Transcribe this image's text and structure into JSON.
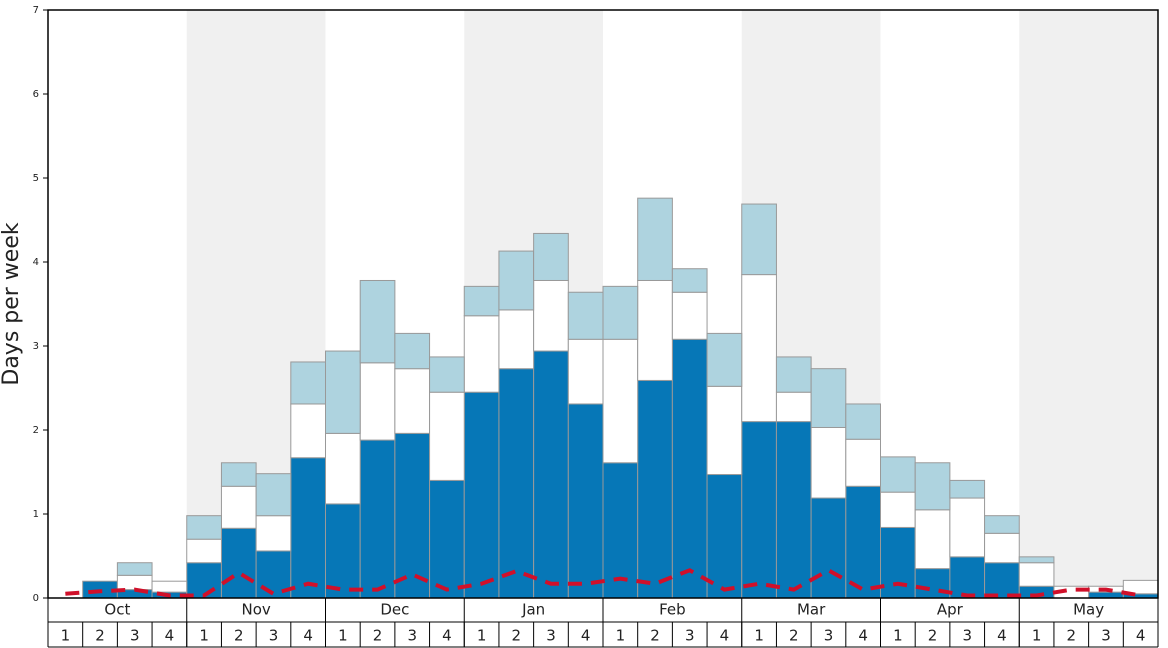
{
  "chart_data": {
    "type": "bar",
    "stacked": true,
    "y_label": "Days per week",
    "months": [
      "Oct",
      "Nov",
      "Dec",
      "Jan",
      "Feb",
      "Mar",
      "Apr",
      "May"
    ],
    "categories": [
      "1",
      "2",
      "3",
      "4",
      "1",
      "2",
      "3",
      "4",
      "1",
      "2",
      "3",
      "4",
      "1",
      "2",
      "3",
      "4",
      "1",
      "2",
      "3",
      "4",
      "1",
      "2",
      "3",
      "4",
      "1",
      "2",
      "3",
      "4",
      "1",
      "2",
      "3",
      "4"
    ],
    "ylim": [
      0,
      7
    ],
    "yticks": [
      0,
      1,
      2,
      3,
      4,
      5,
      6,
      7
    ],
    "shaded_months": [
      1,
      3,
      5,
      7
    ],
    "shade_color": "#f0f0f0",
    "series": [
      {
        "type": "bar",
        "color": "#0677b7",
        "values": [
          0,
          0.2,
          0.1,
          0.07,
          0.42,
          0.83,
          0.56,
          1.67,
          1.12,
          1.88,
          1.96,
          1.4,
          2.45,
          2.73,
          2.94,
          2.31,
          1.61,
          2.59,
          3.08,
          1.47,
          2.1,
          2.1,
          1.19,
          1.33,
          0.84,
          0.35,
          0.49,
          0.42,
          0.14,
          0,
          0.07,
          0.05
        ]
      },
      {
        "type": "bar",
        "color": "#ffffff",
        "values": [
          0,
          0,
          0.17,
          0.13,
          0.28,
          0.5,
          0.42,
          0.64,
          0.84,
          0.92,
          0.77,
          1.05,
          0.91,
          0.7,
          0.84,
          0.77,
          1.47,
          1.19,
          0.56,
          1.05,
          1.75,
          0.35,
          0.84,
          0.56,
          0.42,
          0.7,
          0.7,
          0.35,
          0.28,
          0.14,
          0.07,
          0.16
        ]
      },
      {
        "type": "bar",
        "color": "#aed3df",
        "values": [
          0,
          0,
          0.15,
          0,
          0.28,
          0.28,
          0.5,
          0.5,
          0.98,
          0.98,
          0.42,
          0.42,
          0.35,
          0.7,
          0.56,
          0.56,
          0.63,
          0.98,
          0.28,
          0.63,
          0.84,
          0.42,
          0.7,
          0.42,
          0.42,
          0.56,
          0.21,
          0.21,
          0.07,
          0,
          0,
          0
        ]
      },
      {
        "type": "line",
        "color": "#d0102a",
        "dashed": true,
        "values": [
          0.05,
          0.08,
          0.1,
          0.03,
          0.03,
          0.3,
          0.05,
          0.17,
          0.1,
          0.1,
          0.28,
          0.1,
          0.17,
          0.32,
          0.17,
          0.17,
          0.23,
          0.17,
          0.33,
          0.1,
          0.17,
          0.1,
          0.33,
          0.1,
          0.17,
          0.1,
          0.03,
          0.03,
          0.03,
          0.1,
          0.1,
          0.03
        ]
      }
    ]
  }
}
